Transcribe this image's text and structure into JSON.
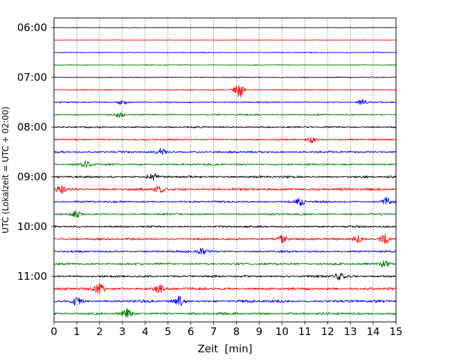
{
  "chart_data": {
    "type": "line",
    "title": "",
    "xlabel": "Zeit  [min]",
    "ylabel": "UTC (Lokalzeit = UTC + 02:00)",
    "xlim": [
      0,
      15
    ],
    "x_ticks": [
      0,
      1,
      2,
      3,
      4,
      5,
      6,
      7,
      8,
      9,
      10,
      11,
      12,
      13,
      14,
      15
    ],
    "x_tick_labels": [
      "0",
      "1",
      "2",
      "3",
      "4",
      "5",
      "6",
      "7",
      "8",
      "9",
      "10",
      "11",
      "12",
      "13",
      "14",
      "15"
    ],
    "grid": "vertical dotted lines at each minute",
    "legend": "none",
    "minutes_per_trace": 15,
    "trace_colors": [
      "#000000",
      "#ff0000",
      "#0000ff",
      "#008000"
    ],
    "y_tick_labels": [
      {
        "row": 0,
        "label": "06:00"
      },
      {
        "row": 4,
        "label": "07:00"
      },
      {
        "row": 8,
        "label": "08:00"
      },
      {
        "row": 12,
        "label": "09:00"
      },
      {
        "row": 16,
        "label": "10:00"
      },
      {
        "row": 20,
        "label": "11:00"
      }
    ],
    "series": [
      {
        "start": "06:00",
        "color": "#000000",
        "noise_level": 0.15,
        "events": []
      },
      {
        "start": "06:15",
        "color": "#ff0000",
        "noise_level": 0.15,
        "events": []
      },
      {
        "start": "06:30",
        "color": "#0000ff",
        "noise_level": 0.25,
        "events": []
      },
      {
        "start": "06:45",
        "color": "#008000",
        "noise_level": 0.25,
        "events": []
      },
      {
        "start": "07:00",
        "color": "#000000",
        "noise_level": 0.25,
        "events": []
      },
      {
        "start": "07:15",
        "color": "#ff0000",
        "noise_level": 0.3,
        "events": [
          {
            "min": 8.1,
            "amp": 2.0
          }
        ]
      },
      {
        "start": "07:30",
        "color": "#0000ff",
        "noise_level": 0.4,
        "events": [
          {
            "min": 3.0,
            "amp": 0.7
          },
          {
            "min": 13.5,
            "amp": 0.6
          }
        ]
      },
      {
        "start": "07:45",
        "color": "#008000",
        "noise_level": 0.45,
        "events": [
          {
            "min": 2.9,
            "amp": 0.6
          }
        ]
      },
      {
        "start": "08:00",
        "color": "#000000",
        "noise_level": 0.5,
        "events": []
      },
      {
        "start": "08:15",
        "color": "#ff0000",
        "noise_level": 0.5,
        "events": [
          {
            "min": 11.3,
            "amp": 0.7
          }
        ]
      },
      {
        "start": "08:30",
        "color": "#0000ff",
        "noise_level": 0.6,
        "events": [
          {
            "min": 4.7,
            "amp": 0.8
          }
        ]
      },
      {
        "start": "08:45",
        "color": "#008000",
        "noise_level": 0.6,
        "events": [
          {
            "min": 1.4,
            "amp": 0.7
          }
        ]
      },
      {
        "start": "09:00",
        "color": "#000000",
        "noise_level": 0.65,
        "events": [
          {
            "min": 4.3,
            "amp": 0.9
          }
        ]
      },
      {
        "start": "09:15",
        "color": "#ff0000",
        "noise_level": 0.75,
        "events": [
          {
            "min": 0.3,
            "amp": 0.9
          },
          {
            "min": 4.6,
            "amp": 0.8
          }
        ]
      },
      {
        "start": "09:30",
        "color": "#0000ff",
        "noise_level": 0.6,
        "events": [
          {
            "min": 10.8,
            "amp": 0.9
          },
          {
            "min": 14.6,
            "amp": 1.0
          }
        ]
      },
      {
        "start": "09:45",
        "color": "#008000",
        "noise_level": 0.6,
        "events": [
          {
            "min": 1.0,
            "amp": 0.7
          }
        ]
      },
      {
        "start": "10:00",
        "color": "#000000",
        "noise_level": 0.6,
        "events": []
      },
      {
        "start": "10:15",
        "color": "#ff0000",
        "noise_level": 0.65,
        "events": [
          {
            "min": 10.0,
            "amp": 1.0
          },
          {
            "min": 13.3,
            "amp": 0.8
          },
          {
            "min": 14.5,
            "amp": 1.1
          }
        ]
      },
      {
        "start": "10:30",
        "color": "#0000ff",
        "noise_level": 0.6,
        "events": [
          {
            "min": 6.5,
            "amp": 0.8
          }
        ]
      },
      {
        "start": "10:45",
        "color": "#008000",
        "noise_level": 0.65,
        "events": [
          {
            "min": 14.5,
            "amp": 0.8
          }
        ]
      },
      {
        "start": "11:00",
        "color": "#000000",
        "noise_level": 0.65,
        "events": [
          {
            "min": 12.5,
            "amp": 0.9
          }
        ]
      },
      {
        "start": "11:15",
        "color": "#ff0000",
        "noise_level": 0.8,
        "events": [
          {
            "min": 2.0,
            "amp": 1.1
          },
          {
            "min": 4.6,
            "amp": 0.9
          }
        ]
      },
      {
        "start": "11:30",
        "color": "#0000ff",
        "noise_level": 0.8,
        "events": [
          {
            "min": 1.0,
            "amp": 1.1
          },
          {
            "min": 5.5,
            "amp": 1.0
          }
        ]
      },
      {
        "start": "11:45",
        "color": "#008000",
        "noise_level": 0.75,
        "events": [
          {
            "min": 3.2,
            "amp": 0.9
          }
        ]
      }
    ]
  }
}
